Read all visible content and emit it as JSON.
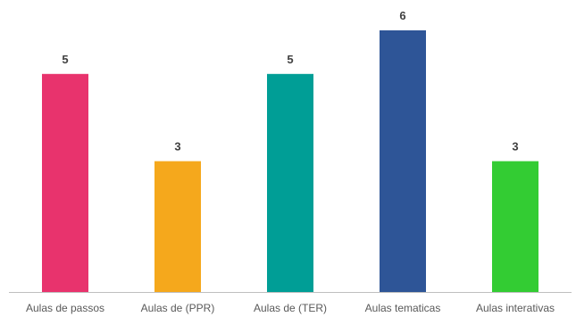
{
  "chart_data": {
    "type": "bar",
    "categories": [
      "Aulas de passos",
      "Aulas de (PPR)",
      "Aulas de (TER)",
      "Aulas tematicas",
      "Aulas interativas"
    ],
    "values": [
      5,
      3,
      5,
      6,
      3
    ],
    "colors": [
      "#E8336D",
      "#F5A81C",
      "#009E96",
      "#2E5597",
      "#33CC33"
    ],
    "ylim": [
      0,
      6
    ],
    "data_labels": true,
    "gridlines": false,
    "axis_color": "#BFBFBF"
  }
}
